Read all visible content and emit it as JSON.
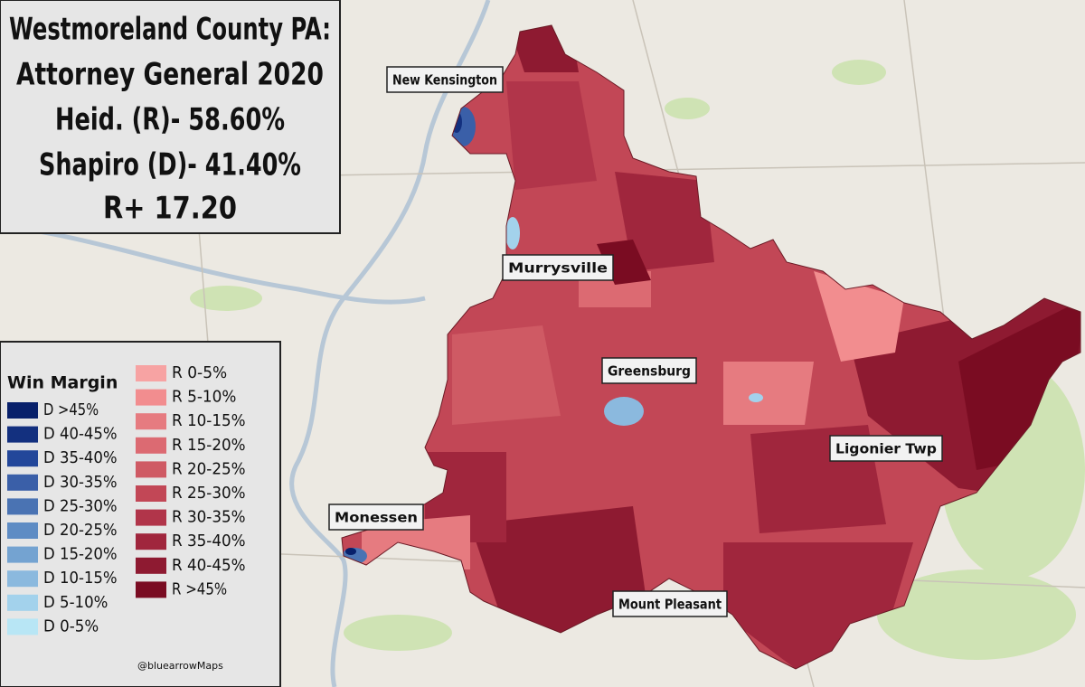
{
  "title_box": {
    "lines": [
      "Westmoreland County PA:",
      "Attorney General 2020",
      "Heid. (R)- 58.60%",
      "Shapiro (D)- 41.40%",
      "R+ 17.20"
    ]
  },
  "legend": {
    "title": "Win Margin",
    "democrat": [
      {
        "label": "D >45%",
        "color": "#08206b"
      },
      {
        "label": "D 40-45%",
        "color": "#13307f"
      },
      {
        "label": "D 35-40%",
        "color": "#23479a"
      },
      {
        "label": "D 30-35%",
        "color": "#3a5fa8"
      },
      {
        "label": "D 25-30%",
        "color": "#4a73b3"
      },
      {
        "label": "D 20-25%",
        "color": "#5e8cc4"
      },
      {
        "label": "D 15-20%",
        "color": "#74a3d1"
      },
      {
        "label": "D 10-15%",
        "color": "#8bb9de"
      },
      {
        "label": "D 5-10%",
        "color": "#a3d2ec"
      },
      {
        "label": "D 0-5%",
        "color": "#b8e6f5"
      }
    ],
    "republican": [
      {
        "label": "R 0-5%",
        "color": "#f7a3a3"
      },
      {
        "label": "R 5-10%",
        "color": "#f28d8f"
      },
      {
        "label": "R 10-15%",
        "color": "#e67b80"
      },
      {
        "label": "R 15-20%",
        "color": "#dc6a72"
      },
      {
        "label": "R 20-25%",
        "color": "#cf5a64"
      },
      {
        "label": "R 25-30%",
        "color": "#c24756"
      },
      {
        "label": "R 30-35%",
        "color": "#b1354a"
      },
      {
        "label": "R 35-40%",
        "color": "#a0263d"
      },
      {
        "label": "R 40-45%",
        "color": "#8e1a31"
      },
      {
        "label": "R >45%",
        "color": "#7a0c22"
      }
    ]
  },
  "places": [
    "New Kensington",
    "Murrysville",
    "Greensburg",
    "Ligonier Twp",
    "Monessen",
    "Mount Pleasant"
  ],
  "credit": "@bluearrowMaps"
}
